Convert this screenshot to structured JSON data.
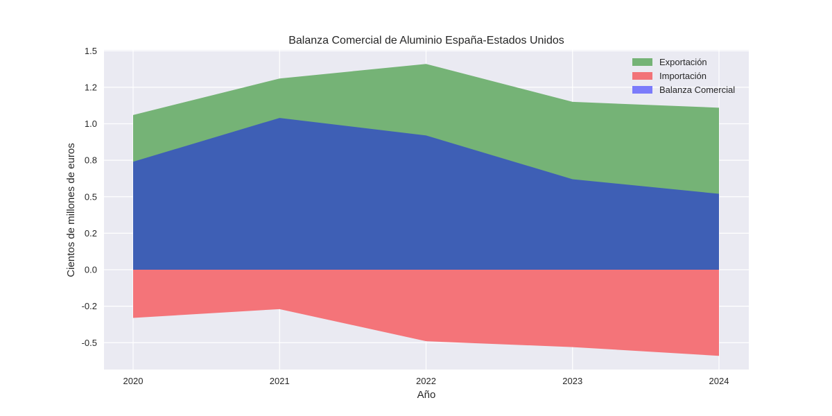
{
  "chart_data": {
    "type": "area",
    "title": "Balanza Comercial de Aluminio España-Estados Unidos",
    "xlabel": "Año",
    "ylabel": "Cientos de millones de euros",
    "x": [
      2020,
      2021,
      2022,
      2023,
      2024
    ],
    "x_tick_labels": [
      "2020",
      "2021",
      "2022",
      "2023",
      "2024"
    ],
    "ylim": [
      -0.69,
      1.51
    ],
    "y_ticks": [
      1.5,
      1.25,
      1.0,
      0.75,
      0.5,
      0.25,
      0.0,
      -0.25,
      -0.5
    ],
    "y_tick_labels": [
      "1.5",
      "1.2",
      "1.0",
      "0.8",
      "0.5",
      "0.2",
      "0.0",
      "-0.2",
      "-0.5"
    ],
    "grid": true,
    "legend_position": "upper right",
    "series": [
      {
        "name": "Exportación",
        "color": "#4c9f50",
        "values": [
          1.06,
          1.31,
          1.41,
          1.15,
          1.11
        ]
      },
      {
        "name": "Importación",
        "color": "#f0474f",
        "values": [
          -0.33,
          -0.27,
          -0.49,
          -0.53,
          -0.59
        ]
      },
      {
        "name": "Balanza Comercial",
        "color": "#0000ff",
        "values": [
          0.74,
          1.04,
          0.92,
          0.62,
          0.52
        ]
      }
    ]
  },
  "legend": {
    "items": [
      {
        "label": "Exportación",
        "swatch": "#75b376"
      },
      {
        "label": "Importación",
        "swatch": "#f27378"
      },
      {
        "label": "Balanza Comercial",
        "swatch": "#7b7bfb"
      }
    ]
  },
  "colors": {
    "background": "#ffffff",
    "plot_background": "#eaeaf2",
    "grid": "#ffffff",
    "export_fill": "#75b376",
    "import_fill": "#f47479",
    "balance_fill": "#3a58bb"
  }
}
